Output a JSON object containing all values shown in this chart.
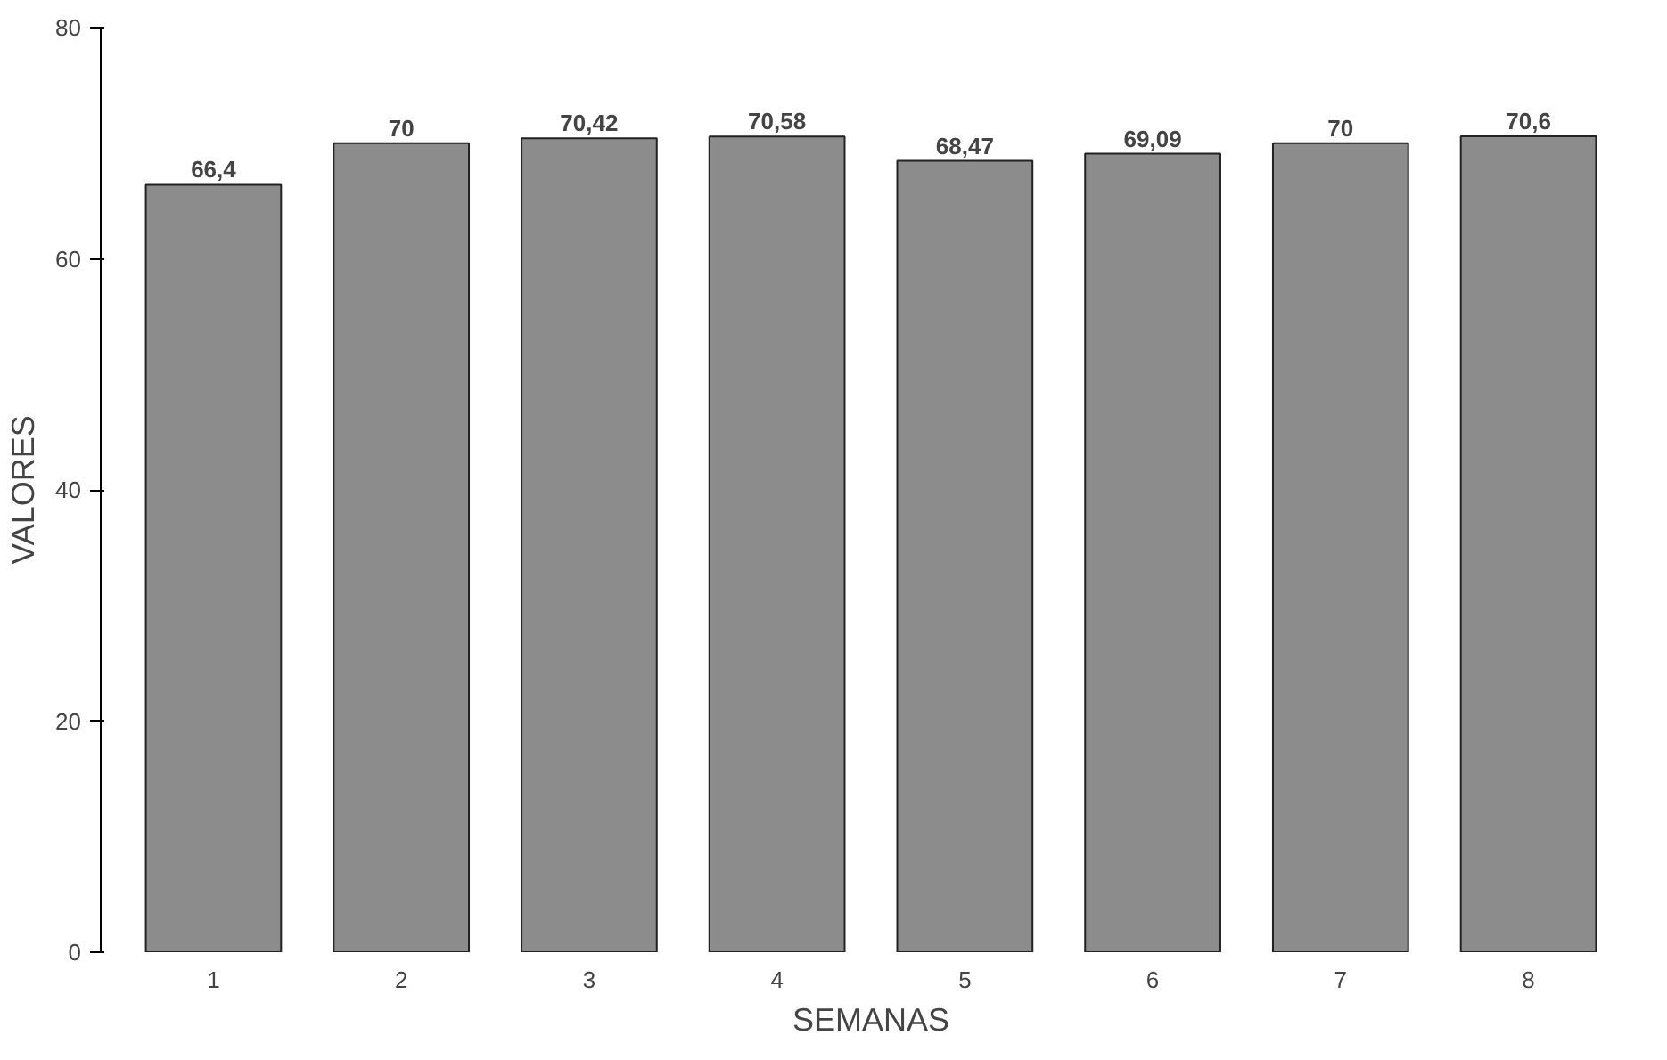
{
  "chart_data": {
    "type": "bar",
    "xlabel": "SEMANAS",
    "ylabel": "VALORES",
    "categories": [
      "1",
      "2",
      "3",
      "4",
      "5",
      "6",
      "7",
      "8"
    ],
    "values": [
      66.4,
      70,
      70.42,
      70.58,
      68.47,
      69.09,
      70,
      70.6
    ],
    "value_labels": [
      "66,4",
      "70",
      "70,42",
      "70,58",
      "68,47",
      "69,09",
      "70",
      "70,6"
    ],
    "color": "#8c8c8c",
    "ylim": [
      0,
      80
    ],
    "yticks": [
      0,
      20,
      40,
      60,
      80
    ],
    "grid": false
  }
}
